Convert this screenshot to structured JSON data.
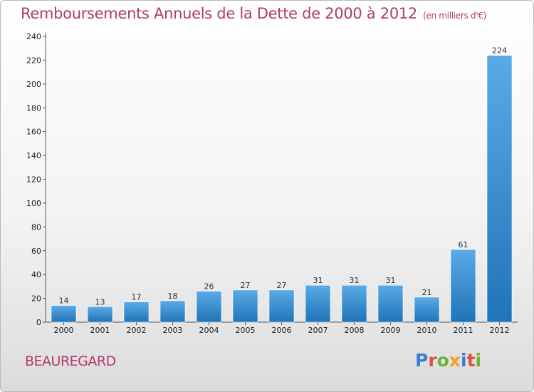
{
  "header": {
    "title": "Remboursements Annuels de la Dette de 2000 à 2012",
    "unit": "(en milliers d'€)"
  },
  "footer": {
    "commune": "BEAUREGARD",
    "logo": "Proxiti"
  },
  "colors": {
    "title": "#b03a6e",
    "bar_light": "#5aaae6",
    "bar_dark": "#1f74b8",
    "logo_letters": [
      "#3a7dd8",
      "#e0533a",
      "#6bb33a",
      "#f2a21c",
      "#3a7dd8",
      "#e0533a",
      "#6bb33a"
    ]
  },
  "chart_data": {
    "type": "bar",
    "title": "Remboursements Annuels de la Dette de 2000 à 2012",
    "subtitle": "(en milliers d'€)",
    "categories": [
      "2000",
      "2001",
      "2002",
      "2003",
      "2004",
      "2005",
      "2006",
      "2007",
      "2008",
      "2009",
      "2010",
      "2011",
      "2012"
    ],
    "values": [
      14,
      13,
      17,
      18,
      26,
      27,
      27,
      31,
      31,
      31,
      21,
      61,
      224
    ],
    "ylim": [
      0,
      240
    ],
    "yticks": [
      0,
      20,
      40,
      60,
      80,
      100,
      120,
      140,
      160,
      180,
      200,
      220,
      240
    ],
    "grid": false,
    "legend": "none"
  }
}
